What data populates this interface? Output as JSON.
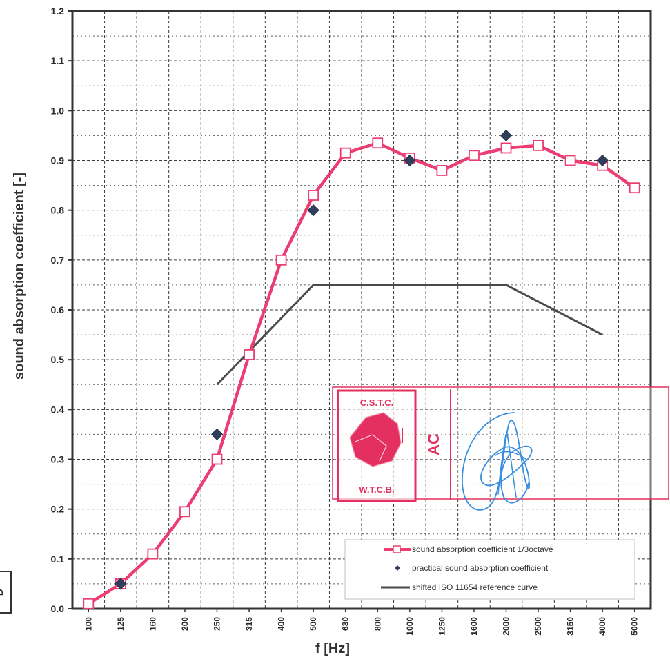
{
  "chart_data": {
    "type": "line",
    "title": "",
    "xlabel": "f [Hz]",
    "ylabel": "sound absorption coefficient [-]",
    "categories": [
      "100",
      "125",
      "160",
      "200",
      "250",
      "315",
      "400",
      "500",
      "630",
      "800",
      "1000",
      "1250",
      "1600",
      "2000",
      "2500",
      "3150",
      "4000",
      "5000"
    ],
    "ylim": [
      0,
      1.2
    ],
    "yticks": [
      "0.0",
      "0.1",
      "0.2",
      "0.3",
      "0.4",
      "0.5",
      "0.6",
      "0.7",
      "0.8",
      "0.9",
      "1.0",
      "1.1",
      "1.2"
    ],
    "grid": true,
    "legend_position": "bottom-right",
    "series": [
      {
        "name": "sound absorption coefficient 1/3octave",
        "kind": "line-square-markers",
        "color": "#ec3d72",
        "values": [
          0.01,
          0.05,
          0.11,
          0.195,
          0.3,
          0.51,
          0.7,
          0.83,
          0.915,
          0.935,
          0.905,
          0.88,
          0.91,
          0.925,
          0.93,
          0.9,
          0.89,
          0.845
        ]
      },
      {
        "name": "practical sound absorption coefficient",
        "kind": "diamond-markers",
        "color": "#2e3e5c",
        "points": [
          {
            "x": "125",
            "y": 0.05
          },
          {
            "x": "250",
            "y": 0.35
          },
          {
            "x": "500",
            "y": 0.8
          },
          {
            "x": "1000",
            "y": 0.9
          },
          {
            "x": "2000",
            "y": 0.95
          },
          {
            "x": "4000",
            "y": 0.9
          }
        ]
      },
      {
        "name": "shifted ISO 11654 reference curve",
        "kind": "line",
        "color": "#4a4a4a",
        "points": [
          {
            "x": "250",
            "y": 0.45
          },
          {
            "x": "500",
            "y": 0.65
          },
          {
            "x": "2000",
            "y": 0.65
          },
          {
            "x": "4000",
            "y": 0.55
          }
        ]
      }
    ],
    "stamp": {
      "top_text": "C.S.T.C.",
      "bottom_text": "W.T.C.B.",
      "side_text": "AC",
      "color": "#e33060",
      "signature_color": "#3a8ee0"
    },
    "margin_fragment": "D"
  }
}
